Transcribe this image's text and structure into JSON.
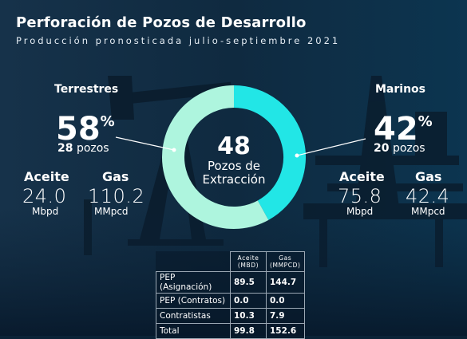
{
  "title": "Perforación de Pozos de Desarrollo",
  "subtitle": "Producción pronosticada julio-septiembre 2021",
  "center": {
    "value": "48",
    "label_line1": "Pozos de",
    "label_line2": "Extracción"
  },
  "terrestres": {
    "label": "Terrestres",
    "percent": "58",
    "pct_sign": "%",
    "pozos_num": "28",
    "pozos_word": "pozos",
    "aceite_label": "Aceite",
    "aceite_value": "24.0",
    "aceite_unit": "Mbpd",
    "gas_label": "Gas",
    "gas_value": "110.2",
    "gas_unit": "MMpcd"
  },
  "marinos": {
    "label": "Marinos",
    "percent": "42",
    "pct_sign": "%",
    "pozos_num": "20",
    "pozos_word": "pozos",
    "aceite_label": "Aceite",
    "aceite_value": "75.8",
    "aceite_unit": "Mbpd",
    "gas_label": "Gas",
    "gas_value": "42.4",
    "gas_unit": "MMpcd"
  },
  "colors": {
    "terrestres": "#aef5de",
    "marinos": "#22e6e6",
    "background": "#0b2236"
  },
  "chart_data": [
    {
      "type": "pie",
      "categories": [
        "Terrestres",
        "Marinos"
      ],
      "values": [
        58,
        42
      ],
      "counts": [
        28,
        20
      ],
      "title": "",
      "center_value": 48
    },
    {
      "type": "table",
      "columns": [
        "",
        "Aceite (MBD)",
        "Gas (MMPCD)"
      ],
      "header_lines": [
        [
          "Aceite",
          "(MBD)"
        ],
        [
          "Gas",
          "(MMPCD)"
        ]
      ],
      "rows": [
        [
          "PEP (Asignación)",
          "89.5",
          "144.7"
        ],
        [
          "PEP (Contratos)",
          "0.0",
          "0.0"
        ],
        [
          "Contratistas",
          "10.3",
          "7.9"
        ],
        [
          "Total",
          "99.8",
          "152.6"
        ]
      ]
    }
  ]
}
